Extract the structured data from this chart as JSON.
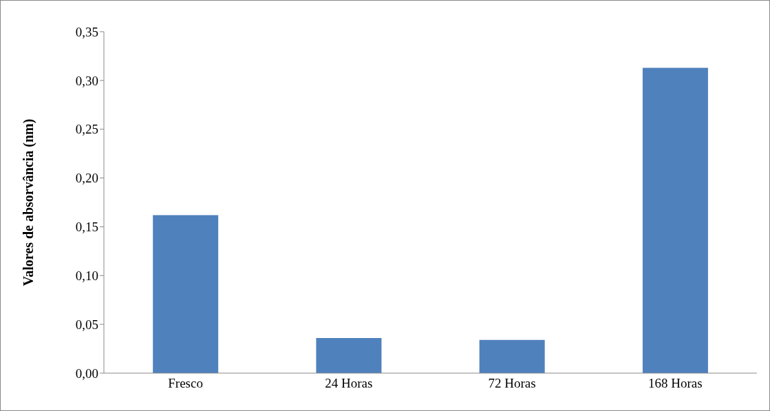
{
  "chart_data": {
    "type": "bar",
    "ylabel": "Valores de absorvância  (nm)",
    "categories": [
      "Fresco",
      "24 Horas",
      "72 Horas",
      "168 Horas"
    ],
    "values": [
      0.162,
      0.036,
      0.034,
      0.313
    ],
    "color": "#4f81bd",
    "ylim": [
      0,
      0.35
    ],
    "yticks": [
      {
        "value": 0,
        "label": "0,00"
      },
      {
        "value": 0.05,
        "label": "0,05"
      },
      {
        "value": 0.1,
        "label": "0,10"
      },
      {
        "value": 0.15,
        "label": "0,15"
      },
      {
        "value": 0.2,
        "label": "0,20"
      },
      {
        "value": 0.25,
        "label": "0,25"
      },
      {
        "value": 0.3,
        "label": "0,30"
      },
      {
        "value": 0.35,
        "label": "0,35"
      }
    ],
    "grid": false
  }
}
